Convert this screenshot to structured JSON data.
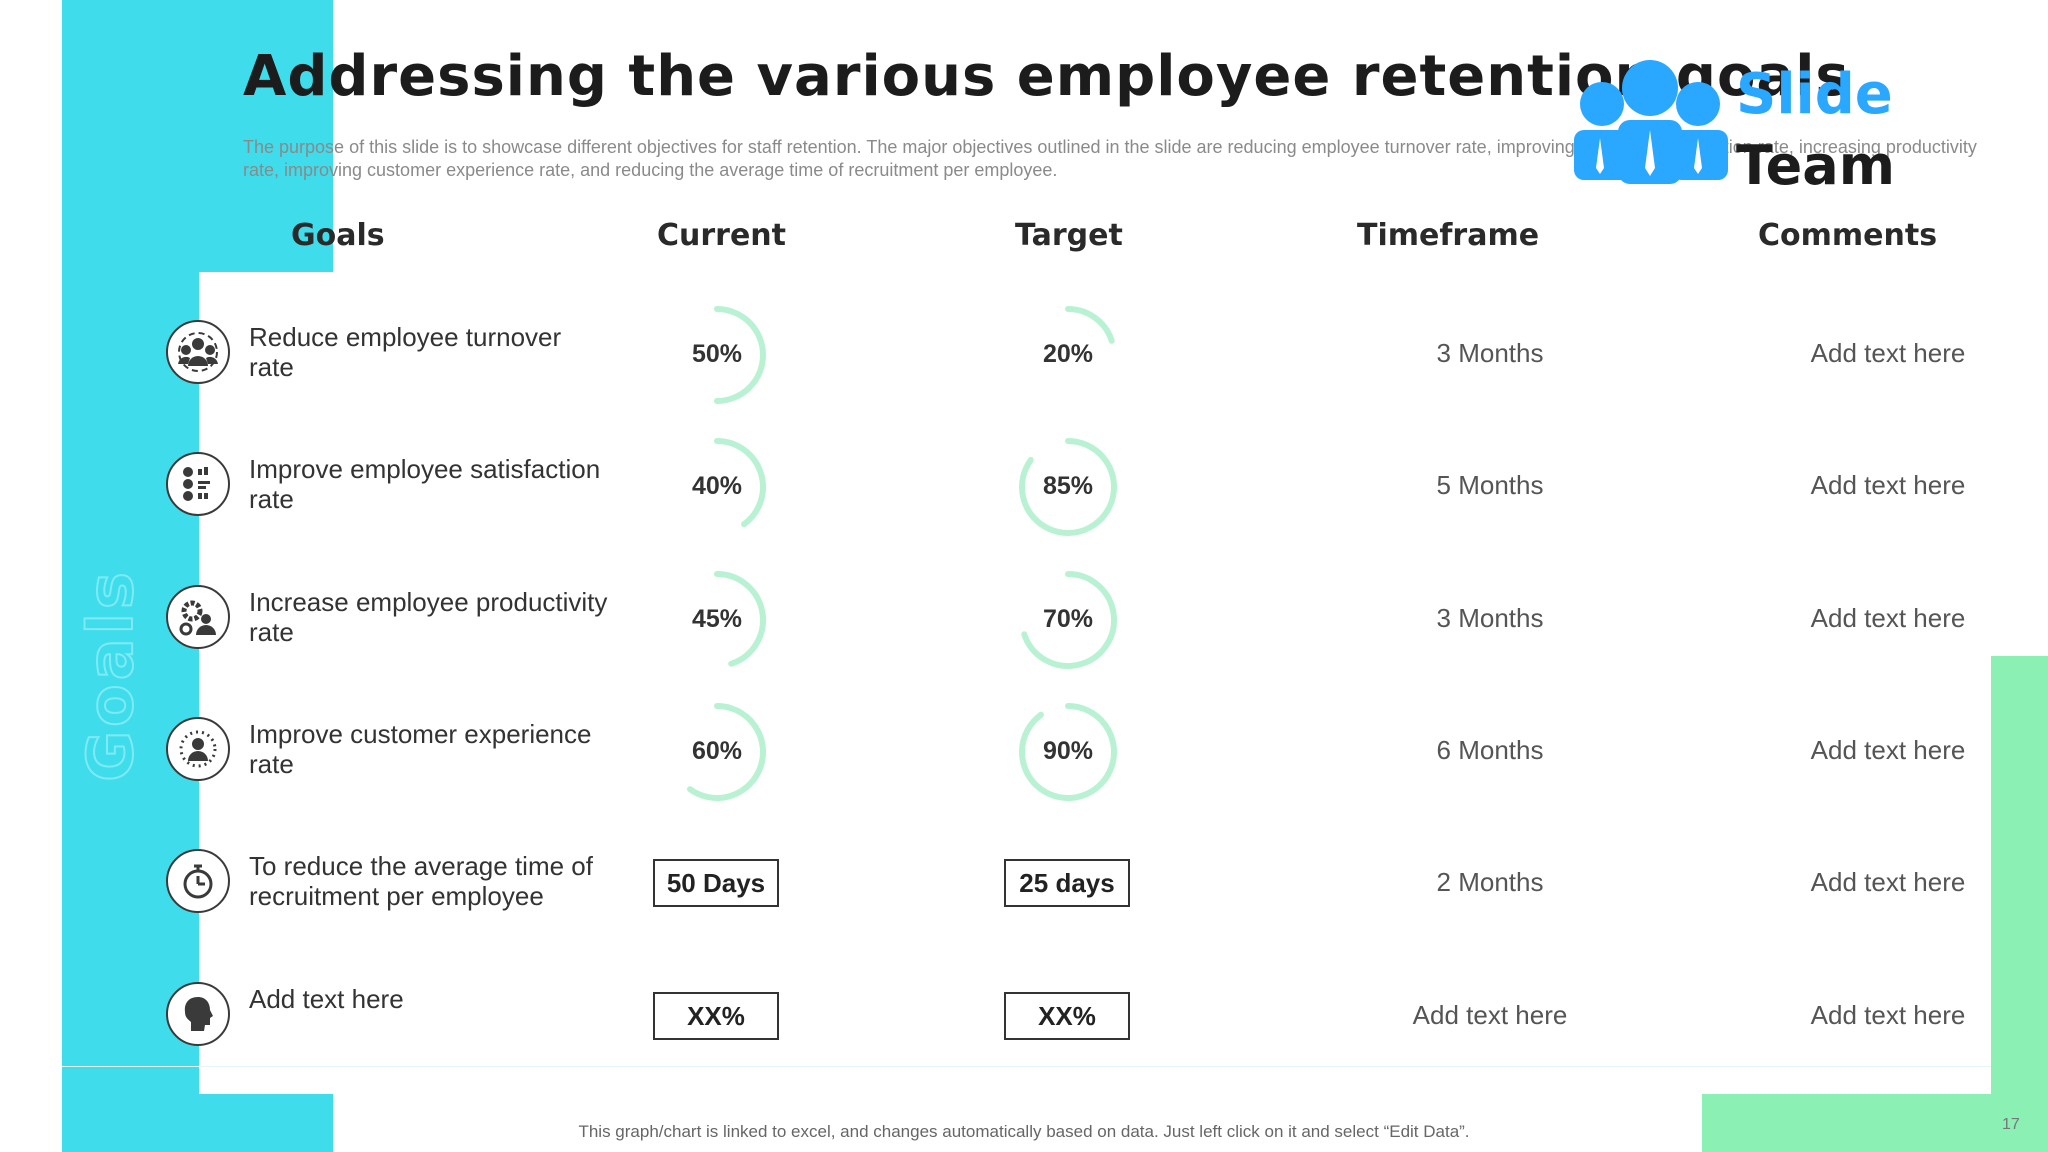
{
  "title": "Addressing the various employee retention goals",
  "subtitle": "The purpose of this slide is to showcase different objectives for staff retention. The major objectives outlined in the slide are reducing employee turnover rate, improving employee satisfaction rate, increasing productivity rate, improving customer experience rate, and reducing the average time of recruitment per employee.",
  "logo": {
    "line1": "Slide",
    "line2": "Team"
  },
  "side_label": "Goals",
  "headers": {
    "goals": "Goals",
    "current": "Current",
    "target": "Target",
    "timeframe": "Timeframe",
    "comments": "Comments"
  },
  "rows": [
    {
      "icon": "team-icon",
      "goal": "Reduce employee turnover rate",
      "current": "50%",
      "current_value": 50,
      "target": "20%",
      "target_value": 20,
      "timeframe": "3 Months",
      "comment": "Add text here"
    },
    {
      "icon": "survey-icon",
      "goal": "Improve employee satisfaction rate",
      "current": "40%",
      "current_value": 40,
      "target": "85%",
      "target_value": 85,
      "timeframe": "5 Months",
      "comment": "Add text here"
    },
    {
      "icon": "productivity-icon",
      "goal": "Increase employee productivity rate",
      "current": "45%",
      "current_value": 45,
      "target": "70%",
      "target_value": 70,
      "timeframe": "3 Months",
      "comment": "Add text here"
    },
    {
      "icon": "customer-icon",
      "goal": "Improve customer experience rate",
      "current": "60%",
      "current_value": 60,
      "target": "90%",
      "target_value": 90,
      "timeframe": "6 Months",
      "comment": "Add text here"
    },
    {
      "icon": "stopwatch-icon",
      "goal": "To reduce the average time of recruitment per employee",
      "current": "50 Days",
      "target": "25 days",
      "timeframe": "2 Months",
      "comment": "Add text here"
    },
    {
      "icon": "head-icon",
      "goal": "Add text here",
      "current": "XX%",
      "target": "XX%",
      "timeframe": "Add text here",
      "comment": "Add text here"
    }
  ],
  "footer": "This graph/chart is linked to excel, and changes automatically based on data. Just left click on it and select “Edit Data”.",
  "page_number": "17",
  "colors": {
    "cyan": "#3fdceb",
    "green": "#8af0b4",
    "gauge": "#b8f2d2",
    "brand_blue": "#2aa7ff"
  }
}
